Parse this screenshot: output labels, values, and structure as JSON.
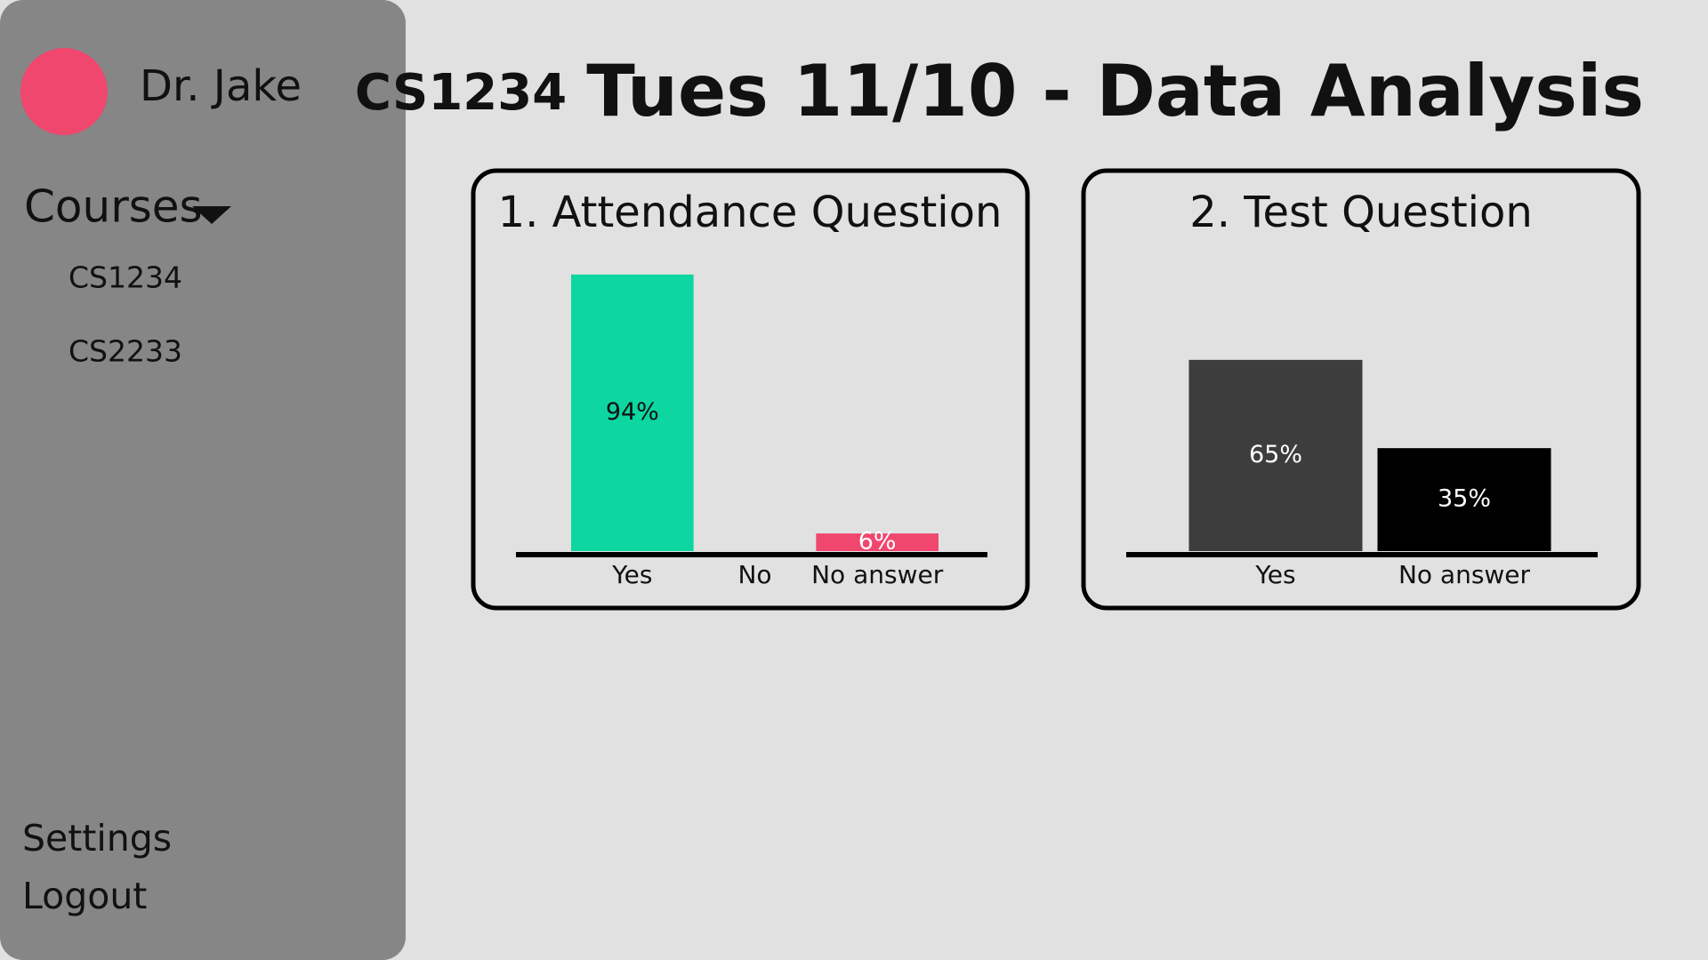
{
  "sidebar": {
    "user": "Dr. Jake",
    "courses_label": "Courses",
    "courses": [
      "CS1234",
      "CS2233"
    ],
    "settings": "Settings",
    "logout": "Logout"
  },
  "header": {
    "course": "CS1234",
    "title": "Tues 11/10 - Data Analysis"
  },
  "chart_data": [
    {
      "type": "bar",
      "title": "1.  Attendance Question",
      "categories": [
        "Yes",
        "No",
        "No answer"
      ],
      "values": [
        94,
        0,
        6
      ],
      "value_labels": [
        "94%",
        null,
        "6%"
      ],
      "colors": [
        "#0dd6a0",
        "#0dd6a0",
        "#f0476f"
      ]
    },
    {
      "type": "bar",
      "title": "2.  Test Question",
      "categories": [
        "Yes",
        "No answer"
      ],
      "values": [
        65,
        35
      ],
      "value_labels": [
        "65%",
        "35%"
      ],
      "colors": [
        "#3d3d3d",
        "#000000"
      ]
    }
  ]
}
